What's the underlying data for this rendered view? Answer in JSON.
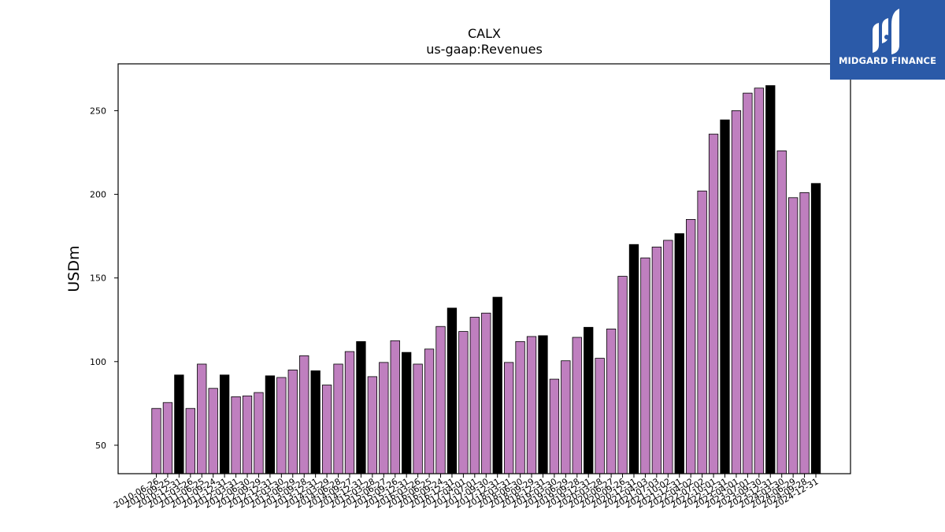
{
  "colors": {
    "normal_bar": "#bf7fbf",
    "highlight_bar": "#000000",
    "bar_edge": "#000000",
    "logo_bg": "#2b5aa8"
  },
  "logo": {
    "text": "MIDGARD FINANCE",
    "icon": "midgard-logo-icon"
  },
  "chart_data": {
    "type": "bar",
    "title": "CALX",
    "subtitle": "us-gaap:Revenues",
    "ylabel": "USDm",
    "xlabel": "",
    "ylim": [
      33,
      278
    ],
    "yticks": [
      50,
      100,
      150,
      200,
      250
    ],
    "grid": false,
    "categories": [
      "2010-06-26",
      "2010-09-25",
      "2010-12-31",
      "2011-03-26",
      "2011-06-25",
      "2011-09-24",
      "2011-12-31",
      "2012-03-31",
      "2012-06-30",
      "2012-09-29",
      "2012-12-31",
      "2013-03-30",
      "2013-06-29",
      "2013-09-28",
      "2013-12-31",
      "2014-03-29",
      "2014-06-28",
      "2014-09-27",
      "2014-12-31",
      "2015-03-28",
      "2015-06-27",
      "2015-09-26",
      "2015-12-31",
      "2016-03-26",
      "2016-06-25",
      "2016-09-24",
      "2016-12-31",
      "2017-04-01",
      "2017-07-01",
      "2017-09-30",
      "2017-12-31",
      "2018-03-31",
      "2018-06-30",
      "2018-09-29",
      "2018-12-31",
      "2019-03-30",
      "2019-06-29",
      "2019-09-28",
      "2019-12-31",
      "2020-03-28",
      "2020-06-27",
      "2020-09-26",
      "2020-12-31",
      "2021-04-03",
      "2021-07-03",
      "2021-10-02",
      "2021-12-31",
      "2022-04-02",
      "2022-07-02",
      "2022-10-01",
      "2022-12-31",
      "2023-04-01",
      "2023-07-01",
      "2023-09-30",
      "2023-12-31",
      "2024-03-30",
      "2024-06-29",
      "2024-09-28",
      "2024-12-31"
    ],
    "values": [
      72,
      75.5,
      92,
      72,
      98.5,
      84,
      92,
      79,
      79.5,
      81.5,
      91.5,
      90.5,
      95,
      103.5,
      94.5,
      86,
      98.5,
      106,
      112,
      91,
      99.5,
      112.5,
      105.5,
      98.5,
      107.5,
      121,
      132,
      118,
      126.5,
      129,
      138.5,
      99.5,
      112,
      115,
      115.5,
      89.5,
      100.5,
      114.5,
      120.5,
      102,
      119.5,
      151,
      170,
      162,
      168.5,
      172.5,
      176.5,
      185,
      202,
      236,
      244.5,
      250,
      260.5,
      263.5,
      265,
      226,
      198,
      201,
      206.5
    ],
    "highlight": [
      false,
      false,
      true,
      false,
      false,
      false,
      true,
      false,
      false,
      false,
      true,
      false,
      false,
      false,
      true,
      false,
      false,
      false,
      true,
      false,
      false,
      false,
      true,
      false,
      false,
      false,
      true,
      false,
      false,
      false,
      true,
      false,
      false,
      false,
      true,
      false,
      false,
      false,
      true,
      false,
      false,
      false,
      true,
      false,
      false,
      false,
      true,
      false,
      false,
      false,
      true,
      false,
      false,
      false,
      true,
      false,
      false,
      false,
      true
    ]
  }
}
